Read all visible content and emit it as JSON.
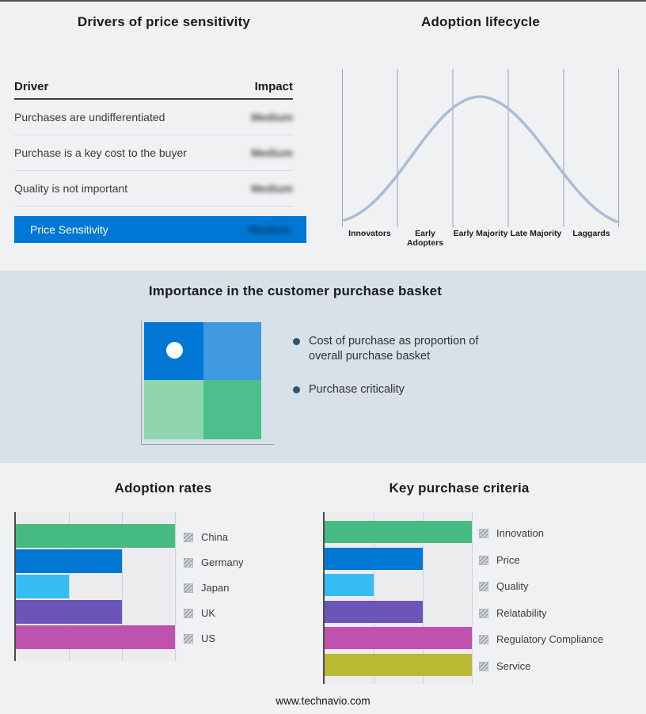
{
  "footer": {
    "url": "www.technavio.com"
  },
  "drivers_table": {
    "title": "Drivers of price sensitivity",
    "header": {
      "driver": "Driver",
      "impact": "Impact"
    },
    "rows": [
      {
        "driver": "Purchases are undifferentiated",
        "impact": "Medium"
      },
      {
        "driver": "Purchase is a key cost to the buyer",
        "impact": "Medium"
      },
      {
        "driver": "Quality is not important",
        "impact": "Medium"
      }
    ],
    "summary": {
      "driver": "Price Sensitivity",
      "impact": "Medium"
    },
    "colors": {
      "summary_bg": "#0077d4"
    }
  },
  "basket": {
    "title": "Importance in the customer purchase basket",
    "bullets": [
      "Cost of purchase as proportion of overall purchase basket",
      "Purchase criticality"
    ],
    "quadrant_colors": [
      "#0077d4",
      "#3f9ae0",
      "#8fd6ad",
      "#4dbf8c"
    ],
    "band_bg": "#d8e0e8"
  },
  "chart_data": [
    {
      "id": "adoption-lifecycle",
      "type": "line",
      "title": "Adoption lifecycle",
      "stages": [
        "Innovators",
        "Early Adopters",
        "Early Majority",
        "Late Majority",
        "Laggards"
      ],
      "shape": "bell curve rising from Innovators, peaking at Early Majority, falling to Laggards",
      "curve_color": "#aabdd5",
      "grid": "vertical stage-boundary lines, no y axis values"
    },
    {
      "id": "adoption-rates",
      "type": "bar",
      "orientation": "horizontal",
      "title": "Adoption rates",
      "categories": [
        "China",
        "Germany",
        "Japan",
        "UK",
        "US"
      ],
      "values": [
        3,
        2,
        1,
        2,
        3
      ],
      "xlim": [
        0,
        3
      ],
      "gridline_values": [
        0,
        1,
        2,
        3
      ],
      "colors": [
        "#45ba82",
        "#0077d4",
        "#36bdf2",
        "#6b55b8",
        "#bf51af"
      ],
      "legend_position": "right"
    },
    {
      "id": "key-purchase-criteria",
      "type": "bar",
      "orientation": "horizontal",
      "title": "Key purchase criteria",
      "categories": [
        "Innovation",
        "Price",
        "Quality",
        "Relatability",
        "Regulatory Compliance",
        "Service"
      ],
      "values": [
        3,
        2,
        1,
        2,
        3,
        3
      ],
      "xlim": [
        0,
        3
      ],
      "gridline_values": [
        0,
        1,
        2,
        3
      ],
      "colors": [
        "#45ba82",
        "#0077d4",
        "#36bdf2",
        "#6b55b8",
        "#bf51af",
        "#b9ba33"
      ],
      "legend_position": "right"
    }
  ]
}
